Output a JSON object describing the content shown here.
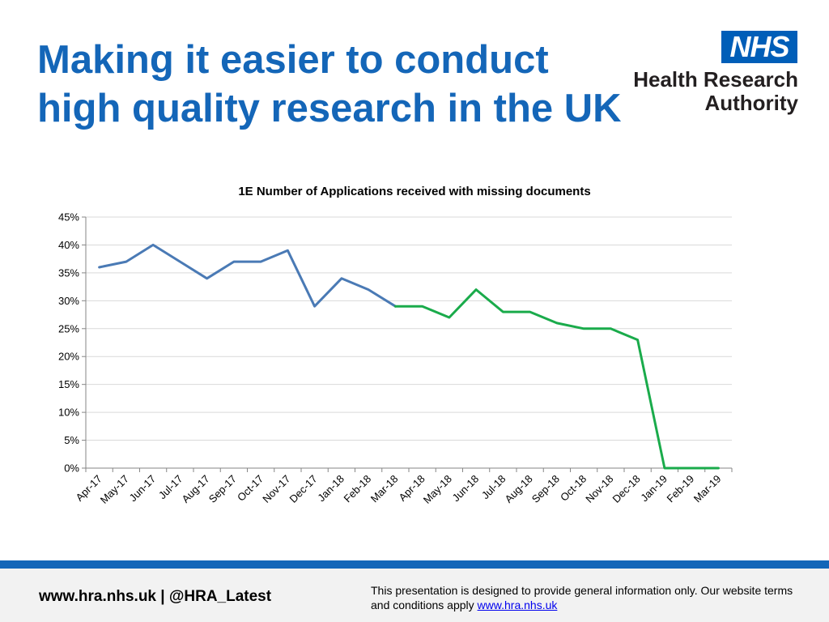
{
  "header": {
    "title_line1": "Making it easier to conduct",
    "title_line2": "high quality research in the UK"
  },
  "logo": {
    "nhs": "NHS",
    "org_line1": "Health Research",
    "org_line2": "Authority",
    "brand_color": "#005eb8"
  },
  "chart_data": {
    "type": "line",
    "title": "1E Number of Applications received with missing documents",
    "xlabel": "",
    "ylabel": "",
    "categories": [
      "Apr-17",
      "May-17",
      "Jun-17",
      "Jul-17",
      "Aug-17",
      "Sep-17",
      "Oct-17",
      "Nov-17",
      "Dec-17",
      "Jan-18",
      "Feb-18",
      "Mar-18",
      "Apr-18",
      "May-18",
      "Jun-18",
      "Jul-18",
      "Aug-18",
      "Sep-18",
      "Oct-18",
      "Nov-18",
      "Dec-18",
      "Jan-19",
      "Feb-19",
      "Mar-19"
    ],
    "values": [
      36,
      37,
      40,
      37,
      34,
      37,
      37,
      39,
      29,
      34,
      32,
      29,
      29,
      27,
      32,
      28,
      28,
      26,
      25,
      25,
      23,
      0,
      0,
      0
    ],
    "segments": [
      {
        "from": "Apr-17",
        "to": "Mar-18",
        "color": "#4a7ab5"
      },
      {
        "from": "Mar-18",
        "to": "Mar-19",
        "color": "#1aab4b"
      }
    ],
    "ylim": [
      0,
      45
    ],
    "yticks": [
      "0%",
      "5%",
      "10%",
      "15%",
      "20%",
      "25%",
      "30%",
      "35%",
      "40%",
      "45%"
    ],
    "grid": true,
    "legend": "none"
  },
  "footer": {
    "left": "www.hra.nhs.uk | @HRA_Latest",
    "disclaimer_line1": "This presentation is designed to provide general information only. Our website terms",
    "disclaimer_line2_prefix": "and conditions apply",
    "link": "www.hra.nhs.uk"
  }
}
